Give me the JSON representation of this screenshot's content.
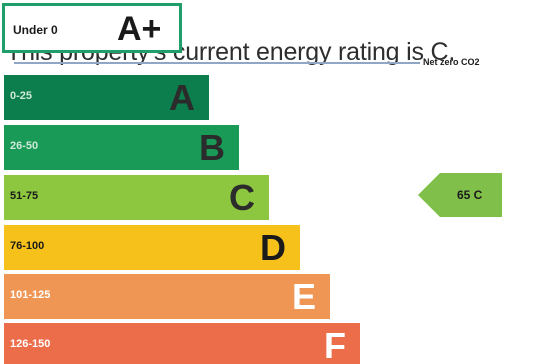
{
  "headline": "This property's current energy rating is C.",
  "net_zero_label": "Net zero CO2",
  "chart_data": {
    "type": "bar",
    "title": "",
    "top_band": {
      "letter": "A+",
      "range": "Under 0",
      "color": "#1f9d6a"
    },
    "bands": [
      {
        "letter": "A",
        "range": "0-25",
        "color": "#0c7d4c",
        "text_color": "#cfe9da"
      },
      {
        "letter": "B",
        "range": "26-50",
        "color": "#199a56",
        "text_color": "#cfe9da"
      },
      {
        "letter": "C",
        "range": "51-75",
        "color": "#8dc63f",
        "text_color": "#1a1a1a"
      },
      {
        "letter": "D",
        "range": "76-100",
        "color": "#f7c11c",
        "text_color": "#1a1a1a"
      },
      {
        "letter": "E",
        "range": "101-125",
        "color": "#ef9654",
        "text_color": "#ffffff"
      },
      {
        "letter": "F",
        "range": "126-150",
        "color": "#ec6d4a",
        "text_color": "#ffffff"
      }
    ],
    "current_rating": {
      "value": 65,
      "letter": "C",
      "label": "65 C",
      "color": "#7fbf4a"
    }
  }
}
